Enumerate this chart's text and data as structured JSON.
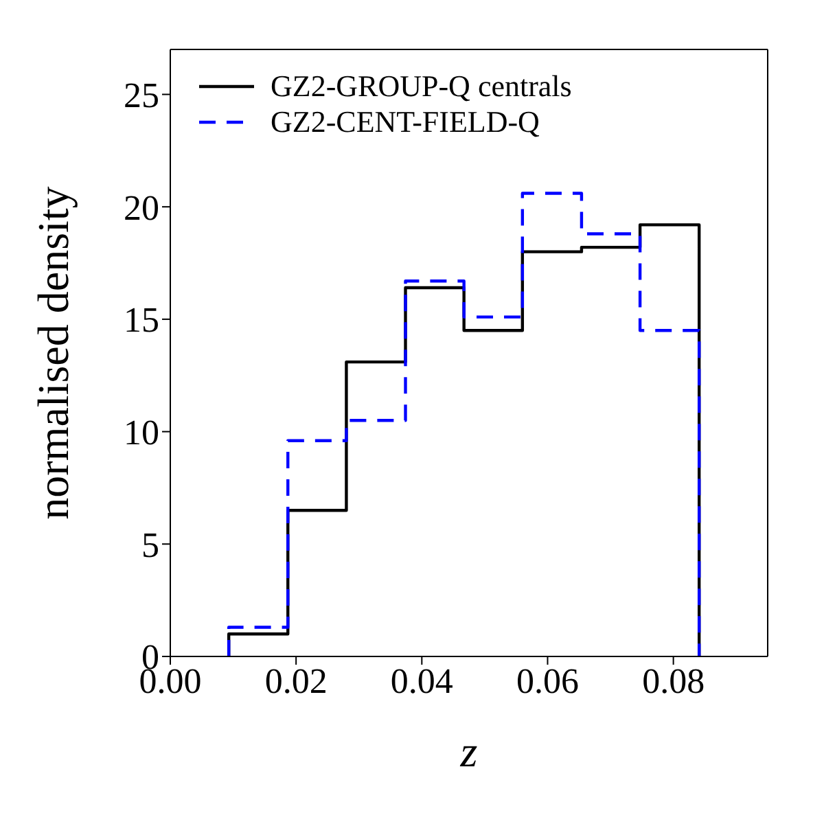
{
  "chart_data": {
    "type": "histogram",
    "xlabel": "z",
    "ylabel": "normalised density",
    "bins": [
      0.0093,
      0.0187,
      0.028,
      0.0374,
      0.0467,
      0.056,
      0.0654,
      0.0747,
      0.0841
    ],
    "series": [
      {
        "name": "GZ2-GROUP-Q centrals",
        "color": "#000000",
        "line_style": "solid",
        "values": [
          1.0,
          6.5,
          13.1,
          16.4,
          14.5,
          18.0,
          18.2,
          19.2
        ]
      },
      {
        "name": "GZ2-CENT-FIELD-Q",
        "color": "#0000ff",
        "line_style": "dashed",
        "values": [
          1.3,
          9.6,
          10.5,
          16.7,
          15.1,
          20.6,
          18.8,
          14.5
        ]
      }
    ],
    "xlim": [
      0,
      0.095
    ],
    "xticks": [
      {
        "value": 0,
        "label": "0.00"
      },
      {
        "value": 0.02,
        "label": "0.02"
      },
      {
        "value": 0.04,
        "label": "0.04"
      },
      {
        "value": 0.06,
        "label": "0.06"
      },
      {
        "value": 0.08,
        "label": "0.08"
      }
    ],
    "ylim": [
      0,
      27
    ],
    "yticks": [
      0,
      5,
      10,
      15,
      20,
      25
    ],
    "legend": "top left"
  }
}
